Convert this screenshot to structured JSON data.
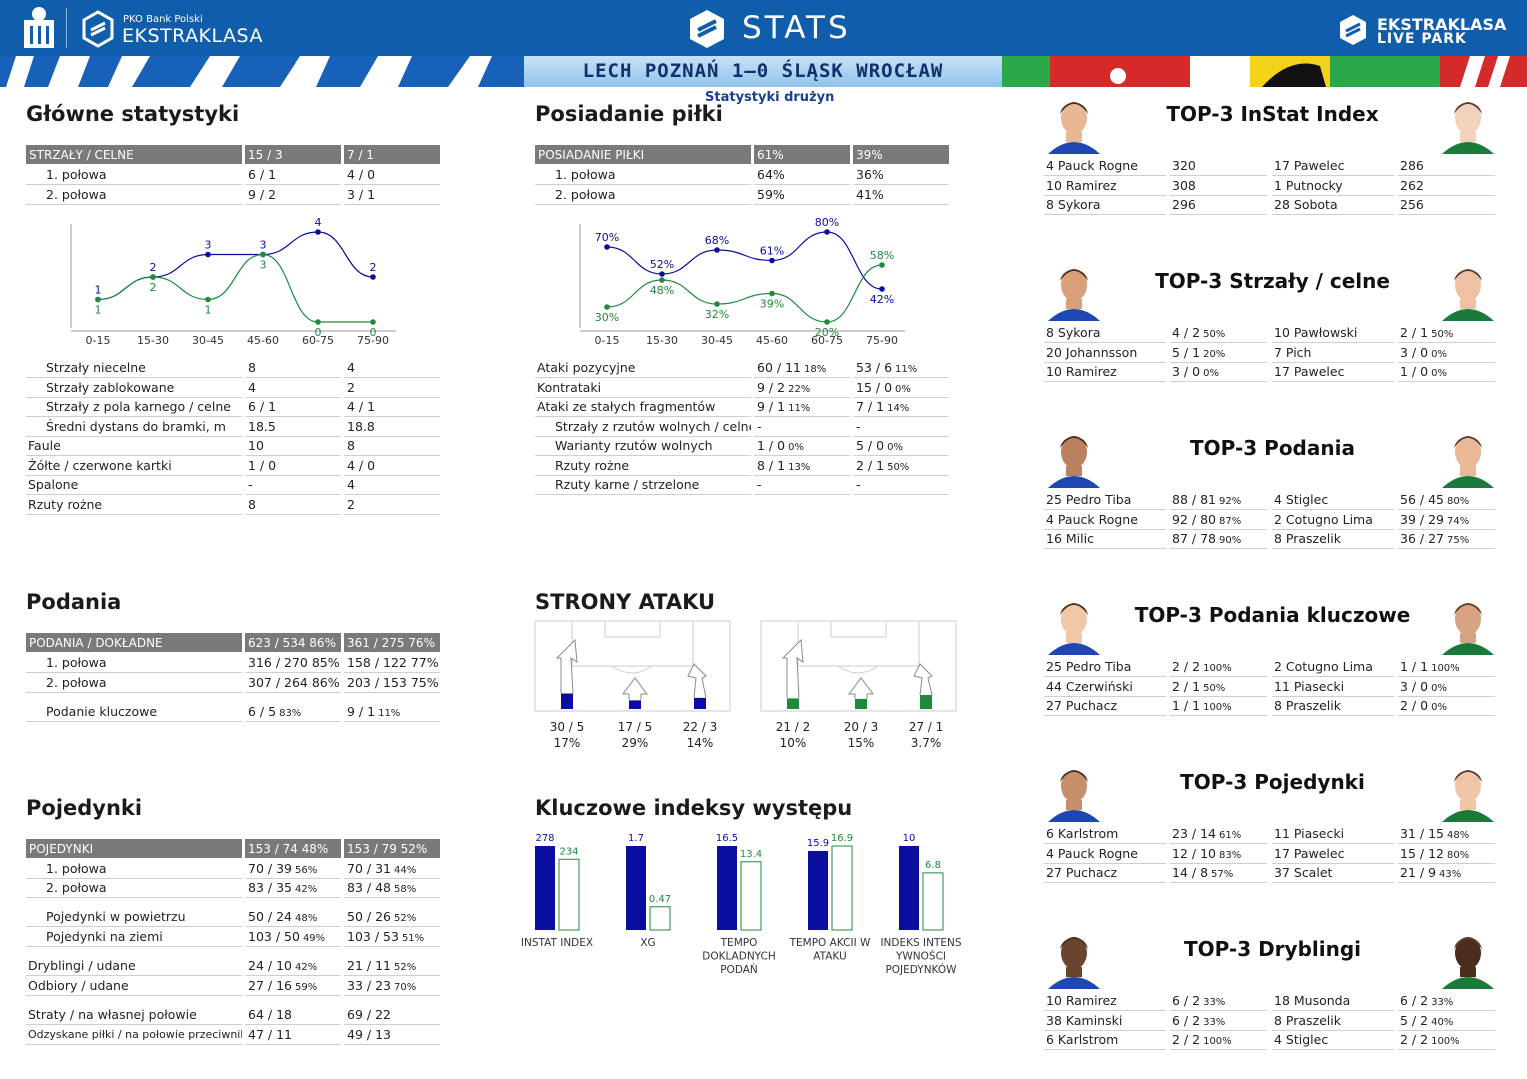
{
  "header": {
    "brand_small": "PKO Bank Polski",
    "brand_big": "EKSTRAKLASA",
    "title": "STATS",
    "live_top": "EKSTRAKLASA",
    "live_bottom": "LIVE PARK",
    "match": "LECH POZNAŃ 1–0 ŚLĄSK WROCŁAW",
    "subtitle": "Statystyki drużyn"
  },
  "colors": {
    "home": "#0a0ea0",
    "away": "#1e8a3c",
    "header": "#0f5dab"
  },
  "main_stats": {
    "title": "Główne statystyki",
    "head": [
      "STRZAŁY / CELNE",
      "15 / 3",
      "7 / 1"
    ],
    "halves": [
      [
        "1. połowa",
        "6 / 1",
        "4 / 0"
      ],
      [
        "2. połowa",
        "9 / 2",
        "3 / 1"
      ]
    ],
    "rows": [
      {
        "label": "Strzały niecelne",
        "home": "8",
        "away": "4",
        "indent": true
      },
      {
        "label": "Strzały zablokowane",
        "home": "4",
        "away": "2",
        "indent": true
      },
      {
        "label": "Strzały z pola karnego / celne",
        "home": "6 / 1",
        "away": "4 / 1",
        "indent": true
      },
      {
        "label": "Średni dystans do bramki, m",
        "home": "18.5",
        "away": "18.8",
        "indent": true
      },
      {
        "label": "Faule",
        "home": "10",
        "away": "8",
        "indent": false
      },
      {
        "label": "Żółte / czerwone kartki",
        "home": "1 / 0",
        "away": "4 / 0",
        "indent": false
      },
      {
        "label": "Spalone",
        "home": "-",
        "away": "4",
        "indent": false
      },
      {
        "label": "Rzuty rożne",
        "home": "8",
        "away": "2",
        "indent": false
      }
    ]
  },
  "possession": {
    "title": "Posiadanie piłki",
    "head": [
      "POSIADANIE PIŁKI",
      "61%",
      "39%"
    ],
    "halves": [
      [
        "1. połowa",
        "64%",
        "36%"
      ],
      [
        "2. połowa",
        "59%",
        "41%"
      ]
    ],
    "rows": [
      {
        "label": "Ataki pozycyjne",
        "home": "60 / 11",
        "home_pct": "18%",
        "away": "53 / 6",
        "away_pct": "11%",
        "indent": false
      },
      {
        "label": "Kontrataki",
        "home": "9 / 2",
        "home_pct": "22%",
        "away": "15 / 0",
        "away_pct": "0%",
        "indent": false
      },
      {
        "label": "Ataki ze stałych fragmentów",
        "home": "9 / 1",
        "home_pct": "11%",
        "away": "7 / 1",
        "away_pct": "14%",
        "indent": false
      },
      {
        "label": "Strzały z rzutów wolnych / celne",
        "home": "-",
        "home_pct": "",
        "away": "-",
        "away_pct": "",
        "indent": true
      },
      {
        "label": "Warianty rzutów wolnych",
        "home": "1 / 0",
        "home_pct": "0%",
        "away": "5 / 0",
        "away_pct": "0%",
        "indent": true
      },
      {
        "label": "Rzuty rożne",
        "home": "8 / 1",
        "home_pct": "13%",
        "away": "2 / 1",
        "away_pct": "50%",
        "indent": true
      },
      {
        "label": "Rzuty karne / strzelone",
        "home": "-",
        "home_pct": "",
        "away": "-",
        "away_pct": "",
        "indent": true
      }
    ]
  },
  "passes": {
    "title": "Podania",
    "head": [
      "PODANIA / DOKŁADNE",
      "623 / 534 86%",
      "361 / 275 76%"
    ],
    "rows": [
      {
        "label": "1. połowa",
        "home": "316 / 270 85%",
        "away": "158 / 122 77%"
      },
      {
        "label": "2. połowa",
        "home": "307 / 264 86%",
        "away": "203 / 153 75%"
      }
    ],
    "key": {
      "label": "Podanie kluczowe",
      "home": "6 / 5",
      "home_pct": "83%",
      "away": "9 / 1",
      "away_pct": "11%"
    }
  },
  "duels": {
    "title": "Pojedynki",
    "head": [
      "POJEDYNKI",
      "153 / 74 48%",
      "153 / 79 52%"
    ],
    "rows": [
      {
        "label": "1. połowa",
        "home": "70 / 39",
        "home_pct": "56%",
        "away": "70 / 31",
        "away_pct": "44%",
        "indent": true
      },
      {
        "label": "2. połowa",
        "home": "83 / 35",
        "home_pct": "42%",
        "away": "83 / 48",
        "away_pct": "58%",
        "indent": true
      },
      {
        "label": "Pojedynki w powietrzu",
        "home": "50 / 24",
        "home_pct": "48%",
        "away": "50 / 26",
        "away_pct": "52%",
        "indent": true
      },
      {
        "label": "Pojedynki na ziemi",
        "home": "103 / 50",
        "home_pct": "49%",
        "away": "103 / 53",
        "away_pct": "51%",
        "indent": true
      },
      {
        "label": "Dryblingi / udane",
        "home": "24 / 10",
        "home_pct": "42%",
        "away": "21 / 11",
        "away_pct": "52%",
        "indent": false
      },
      {
        "label": "Odbiory / udane",
        "home": "27 / 16",
        "home_pct": "59%",
        "away": "33 / 23",
        "away_pct": "70%",
        "indent": false
      },
      {
        "label": "Straty / na własnej połowie",
        "home": "64 / 18",
        "home_pct": "",
        "away": "69 / 22",
        "away_pct": "",
        "indent": false
      },
      {
        "label": "Odzyskane piłki / na połowie przeciwnika",
        "home": "47 / 11",
        "home_pct": "",
        "away": "49 / 13",
        "away_pct": "",
        "indent": false
      }
    ]
  },
  "attack_sides": {
    "title": "STRONY ATAKU",
    "home": [
      {
        "val": "30 / 5",
        "pct": "17%",
        "bar": 0.62
      },
      {
        "val": "17 / 5",
        "pct": "29%",
        "bar": 0.35
      },
      {
        "val": "22 / 3",
        "pct": "14%",
        "bar": 0.45
      }
    ],
    "away": [
      {
        "val": "21 / 2",
        "pct": "10%",
        "bar": 0.43
      },
      {
        "val": "20 / 3",
        "pct": "15%",
        "bar": 0.41
      },
      {
        "val": "27 / 1",
        "pct": "3.7%",
        "bar": 0.56
      }
    ]
  },
  "key_indexes": {
    "title": "Kluczowe indeksy występu"
  },
  "top3": [
    {
      "title": "TOP-3 InStat Index",
      "home": [
        [
          "4 Pauck Rogne",
          "320",
          ""
        ],
        [
          "10 Ramirez",
          "308",
          ""
        ],
        [
          "8 Sykora",
          "296",
          ""
        ]
      ],
      "away": [
        [
          "17 Pawelec",
          "286",
          ""
        ],
        [
          "1 Putnocky",
          "262",
          ""
        ],
        [
          "28 Sobota",
          "256",
          ""
        ]
      ]
    },
    {
      "title": "TOP-3 Strzały / celne",
      "home": [
        [
          "8 Sykora",
          "4 / 2",
          "50%"
        ],
        [
          "20 Johannsson",
          "5 / 1",
          "20%"
        ],
        [
          "10 Ramirez",
          "3 / 0",
          "0%"
        ]
      ],
      "away": [
        [
          "10 Pawłowski",
          "2 / 1",
          "50%"
        ],
        [
          "7 Pich",
          "3 / 0",
          "0%"
        ],
        [
          "17 Pawelec",
          "1 / 0",
          "0%"
        ]
      ]
    },
    {
      "title": "TOP-3 Podania",
      "home": [
        [
          "25 Pedro Tiba",
          "88 / 81",
          "92%"
        ],
        [
          "4 Pauck Rogne",
          "92 / 80",
          "87%"
        ],
        [
          "16 Milic",
          "87 / 78",
          "90%"
        ]
      ],
      "away": [
        [
          "4 Stiglec",
          "56 / 45",
          "80%"
        ],
        [
          "2 Cotugno Lima",
          "39 / 29",
          "74%"
        ],
        [
          "8 Praszelik",
          "36 / 27",
          "75%"
        ]
      ]
    },
    {
      "title": "TOP-3 Podania kluczowe",
      "home": [
        [
          "25 Pedro Tiba",
          "2 / 2",
          "100%"
        ],
        [
          "44 Czerwiński",
          "2 / 1",
          "50%"
        ],
        [
          "27 Puchacz",
          "1 / 1",
          "100%"
        ]
      ],
      "away": [
        [
          "2 Cotugno Lima",
          "1 / 1",
          "100%"
        ],
        [
          "11 Piasecki",
          "3 / 0",
          "0%"
        ],
        [
          "8 Praszelik",
          "2 / 0",
          "0%"
        ]
      ]
    },
    {
      "title": "TOP-3 Pojedynki",
      "home": [
        [
          "6 Karlstrom",
          "23 / 14",
          "61%"
        ],
        [
          "4 Pauck Rogne",
          "12 / 10",
          "83%"
        ],
        [
          "27 Puchacz",
          "14 / 8",
          "57%"
        ]
      ],
      "away": [
        [
          "11 Piasecki",
          "31 / 15",
          "48%"
        ],
        [
          "17 Pawelec",
          "15 / 12",
          "80%"
        ],
        [
          "37 Scalet",
          "21 / 9",
          "43%"
        ]
      ]
    },
    {
      "title": "TOP-3 Dryblingi",
      "home": [
        [
          "10 Ramirez",
          "6 / 2",
          "33%"
        ],
        [
          "38 Kaminski",
          "6 / 2",
          "33%"
        ],
        [
          "6 Karlstrom",
          "2 / 2",
          "100%"
        ]
      ],
      "away": [
        [
          "18 Musonda",
          "6 / 2",
          "33%"
        ],
        [
          "8 Praszelik",
          "5 / 2",
          "40%"
        ],
        [
          "4 Stiglec",
          "2 / 2",
          "100%"
        ]
      ]
    }
  ],
  "chart_data": [
    {
      "type": "line",
      "name": "Strzały w przedziałach czasowych",
      "x": [
        "0-15",
        "15-30",
        "30-45",
        "45-60",
        "60-75",
        "75-90"
      ],
      "series": [
        {
          "values": [
            1,
            2,
            3,
            3,
            4,
            2
          ]
        },
        {
          "values": [
            1,
            2,
            1,
            3,
            0,
            0
          ]
        }
      ]
    },
    {
      "type": "line",
      "name": "Posiadanie piłki w przedziałach czasowych",
      "x": [
        "0-15",
        "15-30",
        "30-45",
        "45-60",
        "60-75",
        "75-90"
      ],
      "series": [
        {
          "values": [
            70,
            52,
            68,
            61,
            80,
            42
          ]
        },
        {
          "values": [
            30,
            48,
            32,
            39,
            20,
            58
          ]
        }
      ]
    },
    {
      "type": "bar",
      "name": "Kluczowe indeksy występu",
      "categories": [
        "INSTAT INDEX",
        "XG",
        "TEMPO DOKLADNYCH PODAŃ",
        "TEMPO AKCII W ATAKU",
        "INDEKS INTENS YWNOŚCI POJEDYNKÓW"
      ],
      "series": [
        {
          "values": [
            278,
            1.7,
            16.5,
            15.9,
            10
          ]
        },
        {
          "values": [
            234,
            0.47,
            13.4,
            16.9,
            6.8
          ]
        }
      ]
    }
  ]
}
